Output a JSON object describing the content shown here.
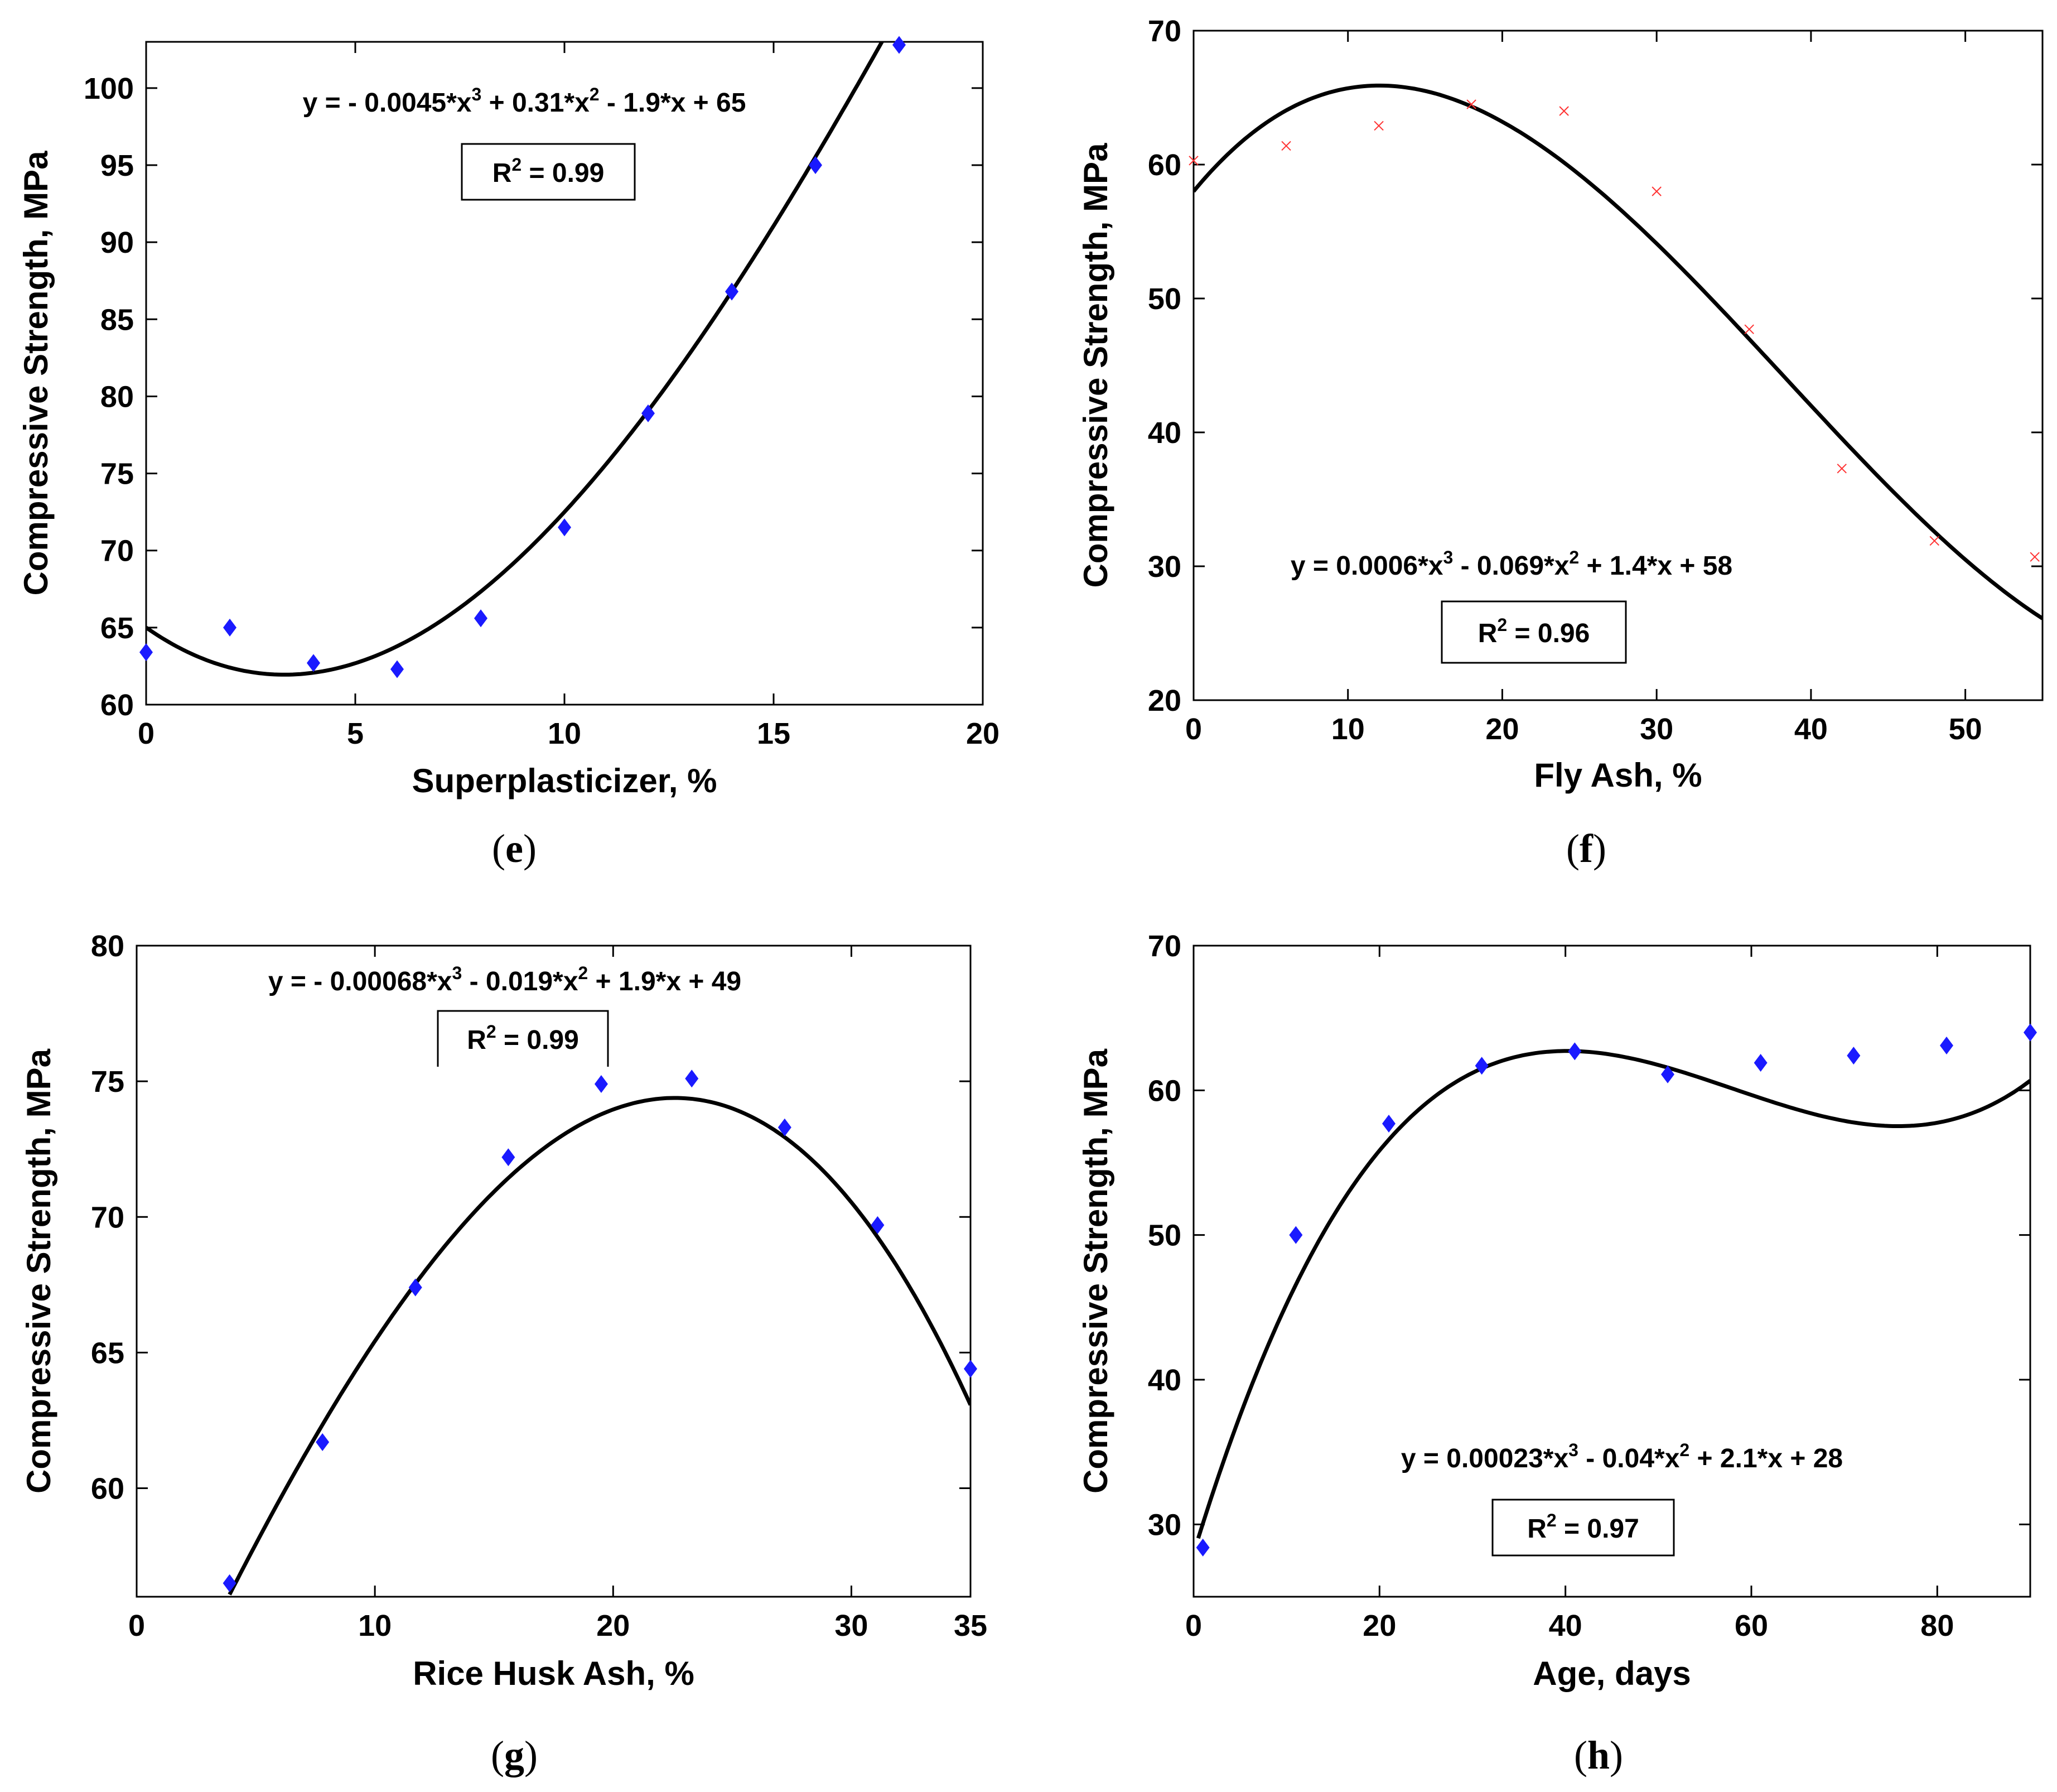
{
  "figure": {
    "colors": {
      "marker": "#1a1aff",
      "fit": "#000000",
      "fly_marker": "#ff3333",
      "axis": "#000000"
    }
  },
  "chart_data": [
    {
      "id": "e",
      "type": "scatter",
      "panel_label": "e",
      "xlabel": "Superplasticizer, %",
      "ylabel": "Compressive Strength, MPa",
      "xlim": [
        0,
        20
      ],
      "ylim": [
        60,
        103
      ],
      "xticks": [
        0,
        5,
        10,
        15,
        20
      ],
      "yticks": [
        60,
        65,
        70,
        75,
        80,
        85,
        90,
        95,
        100
      ],
      "x": [
        0,
        2,
        4,
        6,
        8,
        10,
        12,
        14,
        16,
        18
      ],
      "y": [
        63.4,
        65.0,
        62.7,
        62.3,
        65.6,
        71.5,
        78.9,
        86.8,
        95.0,
        102.8
      ],
      "fit": {
        "coeffs": [
          -0.0045,
          0.31,
          -1.9,
          65
        ],
        "xrange": [
          0,
          18
        ]
      },
      "equation": {
        "prefix": "y = - 0.0045*x",
        "e1": "3",
        "mid1": " + 0.31*x",
        "e2": "2",
        "suffix": " - 1.9*x + 65"
      },
      "r2": {
        "r": "R",
        "sup": "2",
        "value": " = 0.99"
      },
      "marker": "diamond"
    },
    {
      "id": "f",
      "type": "scatter",
      "panel_label": "f",
      "xlabel": "Fly Ash, %",
      "ylabel": "Compressive Strength, MPa",
      "xlim": [
        0,
        55
      ],
      "ylim": [
        20,
        70
      ],
      "xticks": [
        0,
        10,
        20,
        30,
        40,
        50
      ],
      "yticks": [
        20,
        30,
        40,
        50,
        60,
        70
      ],
      "x": [
        0,
        6,
        12,
        18,
        24,
        30,
        36,
        42,
        48,
        54.5
      ],
      "y": [
        60.3,
        61.4,
        62.9,
        64.5,
        64.0,
        58.0,
        47.7,
        37.3,
        31.9,
        30.7
      ],
      "fit": {
        "coeffs": [
          0.0006,
          -0.069,
          1.4,
          58
        ],
        "xrange": [
          0,
          55
        ]
      },
      "equation": {
        "prefix": "y = 0.0006*x",
        "e1": "3",
        "mid1": " - 0.069*x",
        "e2": "2",
        "suffix": " + 1.4*x + 58"
      },
      "r2": {
        "r": "R",
        "sup": "2",
        "value": " = 0.96"
      },
      "marker": "cross"
    },
    {
      "id": "g",
      "type": "scatter",
      "panel_label": "g",
      "xlabel": "Rice Husk Ash, %",
      "ylabel": "Compressive Strength, MPa",
      "xlim": [
        0,
        35
      ],
      "ylim": [
        56,
        80
      ],
      "xticks": [
        0,
        10,
        20,
        30,
        35
      ],
      "yticks": [
        60,
        65,
        70,
        75,
        80
      ],
      "x": [
        3.9,
        7.8,
        11.7,
        15.6,
        19.5,
        23.3,
        27.2,
        31.1,
        35
      ],
      "y": [
        56.5,
        61.7,
        67.4,
        72.2,
        74.9,
        75.1,
        73.3,
        69.7,
        64.4
      ],
      "fit": {
        "coeffs": [
          -0.00068,
          -0.019,
          1.9,
          49
        ],
        "xrange": [
          3.9,
          35
        ]
      },
      "equation": {
        "prefix": "y = - 0.00068*x",
        "e1": "3",
        "mid1": " - 0.019*x",
        "e2": "2",
        "suffix": " + 1.9*x + 49"
      },
      "r2": {
        "r": "R",
        "sup": "2",
        "value": " = 0.99"
      },
      "marker": "diamond"
    },
    {
      "id": "h",
      "type": "scatter",
      "panel_label": "h",
      "xlabel": "Age, days",
      "ylabel": "Compressive Strength, MPa",
      "xlim": [
        0,
        90
      ],
      "ylim": [
        25,
        70
      ],
      "xticks": [
        0,
        20,
        40,
        60,
        80
      ],
      "yticks": [
        30,
        40,
        50,
        60,
        70
      ],
      "x": [
        1,
        11,
        21,
        31,
        41,
        51,
        61,
        71,
        81,
        90
      ],
      "y": [
        28.4,
        50.0,
        57.7,
        61.7,
        62.7,
        61.1,
        61.9,
        62.4,
        63.1,
        64.0
      ],
      "fit": {
        "coeffs": [
          0.00023,
          -0.04,
          2.1,
          28
        ],
        "xrange": [
          0.5,
          90
        ]
      },
      "equation": {
        "prefix": "y = 0.00023*x",
        "e1": "3",
        "mid1": " - 0.04*x",
        "e2": "2",
        "suffix": " + 2.1*x + 28"
      },
      "r2": {
        "r": "R",
        "sup": "2",
        "value": " = 0.97"
      },
      "marker": "diamond"
    }
  ]
}
